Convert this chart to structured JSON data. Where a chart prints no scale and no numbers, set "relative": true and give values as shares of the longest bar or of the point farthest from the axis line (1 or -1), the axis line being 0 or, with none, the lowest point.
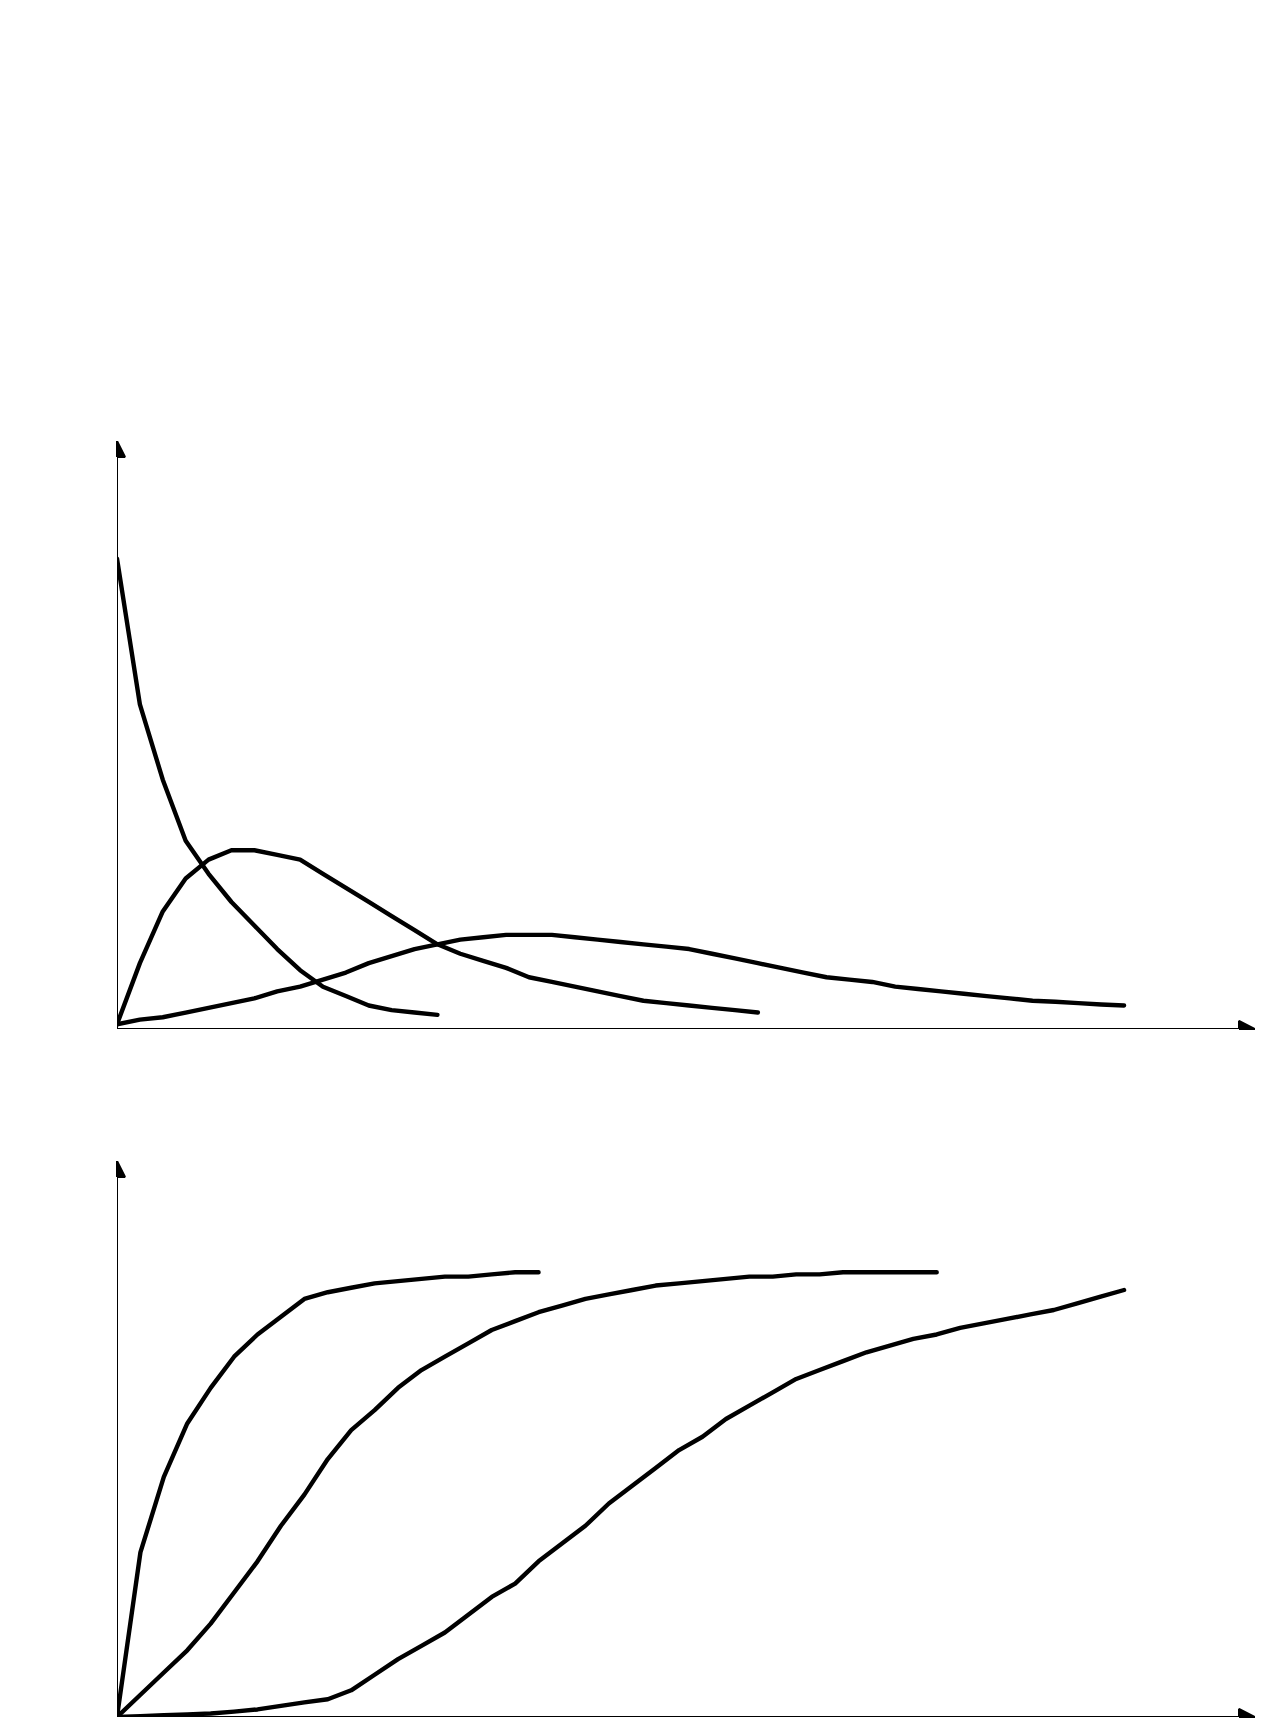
{
  "chart_data": [
    {
      "type": "line",
      "relative": true,
      "categories": [
        null,
        null,
        null,
        null,
        null,
        null,
        null,
        null,
        null,
        null,
        null,
        null,
        null,
        null,
        null,
        null,
        null,
        null,
        null,
        null,
        null,
        null,
        null,
        null,
        null,
        null,
        null,
        null,
        null,
        null,
        null,
        null,
        null,
        null,
        null,
        null,
        null,
        null,
        null,
        null,
        null,
        null,
        null,
        null,
        null
      ],
      "series": [
        {
          "color": "#000000",
          "values": [
            1,
            0.69,
            0.53,
            0.4,
            0.33,
            0.27,
            0.22,
            0.17,
            0.125,
            0.09,
            0.07,
            0.05,
            0.04,
            0.035,
            0.03,
            null,
            null,
            null,
            null,
            null,
            null,
            null,
            null,
            null,
            null,
            null,
            null,
            null,
            null,
            null,
            null,
            null,
            null,
            null,
            null,
            null,
            null,
            null,
            null,
            null,
            null,
            null,
            null,
            null,
            null
          ]
        },
        {
          "color": "#000000",
          "values": [
            0.01,
            0.14,
            0.25,
            0.32,
            0.36,
            0.38,
            0.38,
            0.37,
            0.36,
            0.33,
            0.3,
            0.27,
            0.24,
            0.21,
            0.18,
            0.16,
            0.145,
            0.13,
            0.11,
            0.1,
            0.09,
            0.08,
            0.07,
            0.06,
            0.055,
            0.05,
            0.045,
            0.04,
            0.035,
            null,
            null,
            null,
            null,
            null,
            null,
            null,
            null,
            null,
            null,
            null,
            null,
            null,
            null,
            null,
            null
          ]
        },
        {
          "color": "#000000",
          "values": [
            0.01,
            0.02,
            0.025,
            0.035,
            0.045,
            0.055,
            0.065,
            0.08,
            0.09,
            0.105,
            0.12,
            0.14,
            0.155,
            0.17,
            0.18,
            0.19,
            0.195,
            0.2,
            0.2,
            0.2,
            0.195,
            0.19,
            0.185,
            0.18,
            0.175,
            0.17,
            0.16,
            0.15,
            0.14,
            0.13,
            0.12,
            0.11,
            0.105,
            0.1,
            0.09,
            0.085,
            0.08,
            0.075,
            0.07,
            0.065,
            0.06,
            0.058,
            0.055,
            0.052,
            0.05
          ]
        }
      ]
    },
    {
      "type": "line",
      "relative": true,
      "categories": [
        null,
        null,
        null,
        null,
        null,
        null,
        null,
        null,
        null,
        null,
        null,
        null,
        null,
        null,
        null,
        null,
        null,
        null,
        null,
        null,
        null,
        null,
        null,
        null,
        null,
        null,
        null,
        null,
        null,
        null,
        null,
        null,
        null,
        null,
        null,
        null,
        null,
        null,
        null,
        null,
        null,
        null,
        null,
        null
      ],
      "series": [
        {
          "color": "#000000",
          "values": [
            0,
            0.37,
            0.54,
            0.66,
            0.74,
            0.81,
            0.86,
            0.9,
            0.94,
            0.955,
            0.965,
            0.975,
            0.98,
            0.985,
            0.99,
            0.99,
            0.995,
            1,
            1,
            null,
            null,
            null,
            null,
            null,
            null,
            null,
            null,
            null,
            null,
            null,
            null,
            null,
            null,
            null,
            null,
            null,
            null,
            null,
            null,
            null,
            null,
            null,
            null,
            null
          ]
        },
        {
          "color": "#000000",
          "values": [
            0,
            0.05,
            0.1,
            0.15,
            0.21,
            0.28,
            0.35,
            0.43,
            0.5,
            0.58,
            0.645,
            0.69,
            0.74,
            0.78,
            0.81,
            0.84,
            0.87,
            0.89,
            0.91,
            0.925,
            0.94,
            0.95,
            0.96,
            0.97,
            0.975,
            0.98,
            0.985,
            0.99,
            0.99,
            0.995,
            0.995,
            1,
            1,
            1,
            1,
            1,
            null,
            null,
            null,
            null,
            null,
            null,
            null,
            null
          ]
        },
        {
          "color": "#000000",
          "values": [
            0,
            0.002,
            0.004,
            0.006,
            0.008,
            0.012,
            0.017,
            0.025,
            0.033,
            0.04,
            0.06,
            0.095,
            0.13,
            0.16,
            0.19,
            0.23,
            0.27,
            0.3,
            0.35,
            0.39,
            0.43,
            0.48,
            0.52,
            0.56,
            0.6,
            0.63,
            0.67,
            0.7,
            0.73,
            0.76,
            0.78,
            0.8,
            0.82,
            0.835,
            0.85,
            0.86,
            0.875,
            0.885,
            0.895,
            0.905,
            0.915,
            0.93,
            0.945,
            0.96
          ]
        }
      ]
    }
  ]
}
